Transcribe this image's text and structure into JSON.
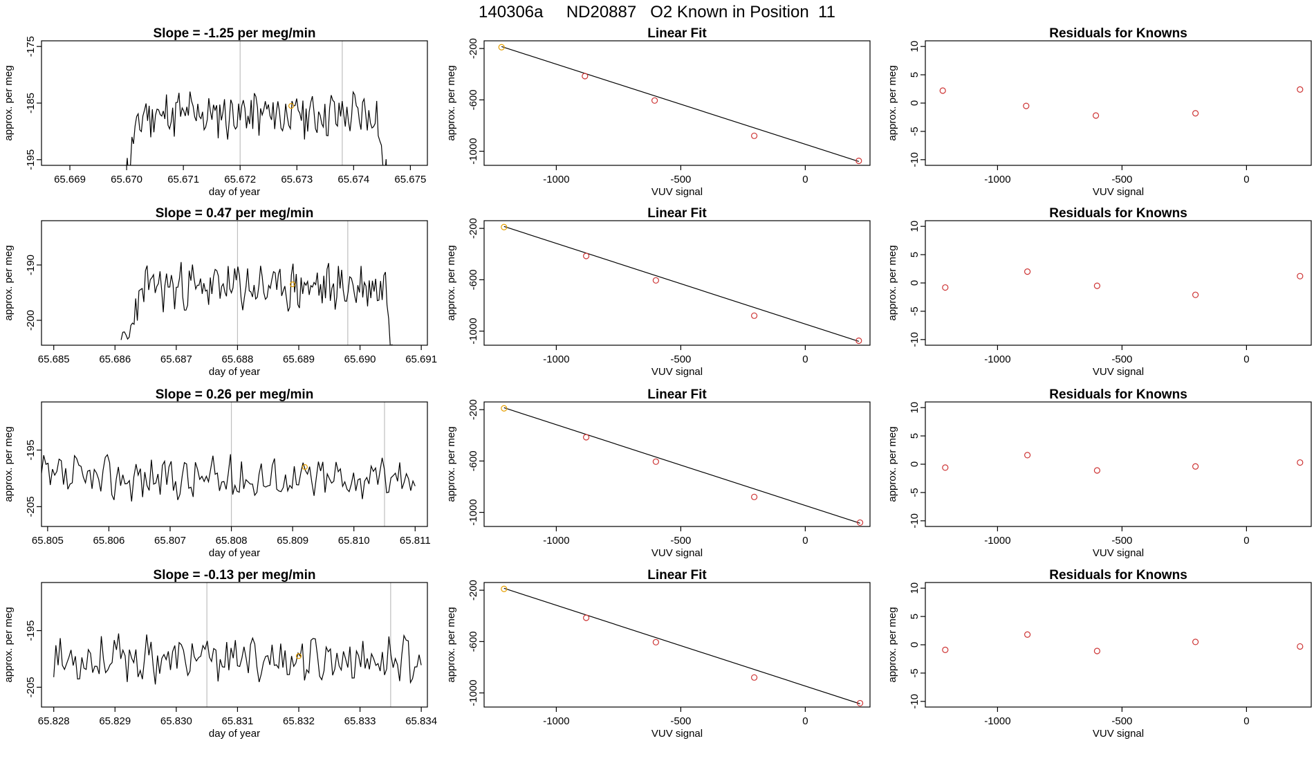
{
  "figure": {
    "title": "140306a     ND20887   O2 Known in Position  11"
  },
  "colors": {
    "line": "#000000",
    "fit_point": "#cd3333",
    "highlight_point": "#e69f00",
    "vline": "#bebebe",
    "axis": "#000000"
  },
  "chart_data": [
    {
      "type": "line",
      "row": 1,
      "col": 1,
      "title": "Slope =  -1.25  per meg/min",
      "xlabel": "day of year",
      "ylabel": "approx. per meg",
      "xlim": [
        65.6685,
        65.6753
      ],
      "ylim": [
        -196,
        -174
      ],
      "xticks": [
        65.669,
        65.67,
        65.671,
        65.672,
        65.673,
        65.674,
        65.675
      ],
      "xtick_labels": [
        "65.669",
        "65.670",
        "65.671",
        "65.672",
        "65.673",
        "65.674",
        "65.675"
      ],
      "yticks": [
        -175,
        -185,
        -195
      ],
      "ytick_labels": [
        "-175",
        "-185",
        "-195"
      ],
      "vlines": [
        65.672,
        65.6738
      ],
      "x_range": [
        65.6699,
        65.6746
      ],
      "baseline": -187,
      "amp": 3.5,
      "ramp_drop": 9,
      "seed": 11,
      "highlight": {
        "x": 65.6729,
        "y": -185.5
      }
    },
    {
      "type": "scatter_fit",
      "row": 1,
      "col": 2,
      "title": "Linear Fit",
      "xlabel": "VUV signal",
      "ylabel": "approx. per meg",
      "xlim": [
        -1290,
        260
      ],
      "ylim": [
        -1110,
        -140
      ],
      "xticks": [
        -1000,
        -500,
        0
      ],
      "xtick_labels": [
        "-1000",
        "-500",
        "0"
      ],
      "yticks": [
        -200,
        -600,
        -1000
      ],
      "ytick_labels": [
        "-200",
        "-600",
        "-1000"
      ],
      "x": [
        -1220,
        -885,
        -605,
        -205,
        215
      ],
      "y": [
        -190,
        -415,
        -605,
        -880,
        -1075
      ],
      "fit_line": [
        [
          -1220,
          -185
        ],
        [
          215,
          -1080
        ]
      ]
    },
    {
      "type": "scatter",
      "row": 1,
      "col": 3,
      "title": "Residuals for Knowns",
      "xlabel": "VUV signal",
      "ylabel": "approx. per meg",
      "xlim": [
        -1290,
        260
      ],
      "ylim": [
        -11,
        11
      ],
      "xticks": [
        -1000,
        -500,
        0
      ],
      "xtick_labels": [
        "-1000",
        "-500",
        "0"
      ],
      "yticks": [
        10,
        5,
        0,
        -5,
        -10
      ],
      "ytick_labels": [
        "10",
        "5",
        "0",
        "-5",
        "-10"
      ],
      "x": [
        -1220,
        -885,
        -605,
        -205,
        215
      ],
      "y": [
        2.2,
        -0.5,
        -2.2,
        -1.8,
        2.4
      ]
    },
    {
      "type": "line",
      "row": 2,
      "col": 1,
      "title": "Slope =  0.47  per meg/min",
      "xlabel": "day of year",
      "ylabel": "approx. per meg",
      "xlim": [
        65.6848,
        65.6911
      ],
      "ylim": [
        -204.5,
        -182
      ],
      "xticks": [
        65.685,
        65.686,
        65.687,
        65.688,
        65.689,
        65.69,
        65.691
      ],
      "xtick_labels": [
        "65.685",
        "65.686",
        "65.687",
        "65.688",
        "65.689",
        "65.690",
        "65.691"
      ],
      "yticks": [
        -190,
        -200
      ],
      "ytick_labels": [
        "-190",
        "-200"
      ],
      "vlines": [
        65.688,
        65.6898
      ],
      "x_range": [
        65.6861,
        65.6906
      ],
      "baseline": -194,
      "amp": 3.5,
      "ramp_drop": 9,
      "seed": 23,
      "highlight": {
        "x": 65.6889,
        "y": -193.5
      }
    },
    {
      "type": "scatter_fit",
      "row": 2,
      "col": 2,
      "title": "Linear Fit",
      "xlabel": "VUV signal",
      "ylabel": "approx. per meg",
      "xlim": [
        -1290,
        260
      ],
      "ylim": [
        -1110,
        -140
      ],
      "xticks": [
        -1000,
        -500,
        0
      ],
      "xtick_labels": [
        "-1000",
        "-500",
        "0"
      ],
      "yticks": [
        -200,
        -600,
        -1000
      ],
      "ytick_labels": [
        "-200",
        "-600",
        "-1000"
      ],
      "x": [
        -1210,
        -880,
        -600,
        -205,
        215
      ],
      "y": [
        -190,
        -415,
        -605,
        -880,
        -1075
      ],
      "fit_line": [
        [
          -1210,
          -185
        ],
        [
          215,
          -1080
        ]
      ]
    },
    {
      "type": "scatter",
      "row": 2,
      "col": 3,
      "title": "Residuals for Knowns",
      "xlabel": "VUV signal",
      "ylabel": "approx. per meg",
      "xlim": [
        -1290,
        260
      ],
      "ylim": [
        -11,
        11
      ],
      "xticks": [
        -1000,
        -500,
        0
      ],
      "xtick_labels": [
        "-1000",
        "-500",
        "0"
      ],
      "yticks": [
        10,
        5,
        0,
        -5,
        -10
      ],
      "ytick_labels": [
        "10",
        "5",
        "0",
        "-5",
        "-10"
      ],
      "x": [
        -1210,
        -880,
        -600,
        -205,
        215
      ],
      "y": [
        -0.8,
        2.0,
        -0.5,
        -2.1,
        1.2
      ]
    },
    {
      "type": "line",
      "row": 3,
      "col": 1,
      "title": "Slope =  0.26  per meg/min",
      "xlabel": "day of year",
      "ylabel": "approx. per meg",
      "xlim": [
        65.8049,
        65.8112
      ],
      "ylim": [
        -208.5,
        -186.5
      ],
      "xticks": [
        65.805,
        65.806,
        65.807,
        65.808,
        65.809,
        65.81,
        65.811
      ],
      "xtick_labels": [
        "65.805",
        "65.806",
        "65.807",
        "65.808",
        "65.809",
        "65.810",
        "65.811"
      ],
      "yticks": [
        -195,
        -205
      ],
      "ytick_labels": [
        "-195",
        "-205"
      ],
      "vlines": [
        65.808,
        65.8105
      ],
      "x_range": [
        65.8049,
        65.811
      ],
      "baseline": -200,
      "amp": 3.2,
      "ramp_drop": 0,
      "seed": 37,
      "highlight": {
        "x": 65.8092,
        "y": -198.0
      }
    },
    {
      "type": "scatter_fit",
      "row": 3,
      "col": 2,
      "title": "Linear Fit",
      "xlabel": "VUV signal",
      "ylabel": "approx. per meg",
      "xlim": [
        -1290,
        260
      ],
      "ylim": [
        -1110,
        -140
      ],
      "xticks": [
        -1000,
        -500,
        0
      ],
      "xtick_labels": [
        "-1000",
        "-500",
        "0"
      ],
      "yticks": [
        -200,
        -600,
        -1000
      ],
      "ytick_labels": [
        "-200",
        "-600",
        "-1000"
      ],
      "x": [
        -1210,
        -880,
        -600,
        -205,
        220
      ],
      "y": [
        -190,
        -415,
        -605,
        -880,
        -1080
      ],
      "fit_line": [
        [
          -1210,
          -185
        ],
        [
          220,
          -1085
        ]
      ]
    },
    {
      "type": "scatter",
      "row": 3,
      "col": 3,
      "title": "Residuals for Knowns",
      "xlabel": "VUV signal",
      "ylabel": "approx. per meg",
      "xlim": [
        -1290,
        260
      ],
      "ylim": [
        -11,
        11
      ],
      "xticks": [
        -1000,
        -500,
        0
      ],
      "xtick_labels": [
        "-1000",
        "-500",
        "0"
      ],
      "yticks": [
        10,
        5,
        0,
        -5,
        -10
      ],
      "ytick_labels": [
        "10",
        "5",
        "0",
        "-5",
        "-10"
      ],
      "x": [
        -1210,
        -880,
        -600,
        -205,
        215
      ],
      "y": [
        -0.6,
        1.6,
        -1.1,
        -0.4,
        0.3
      ]
    },
    {
      "type": "line",
      "row": 4,
      "col": 1,
      "title": "Slope =  -0.13  per meg/min",
      "xlabel": "day of year",
      "ylabel": "approx. per meg",
      "xlim": [
        65.8278,
        65.8341
      ],
      "ylim": [
        -208.5,
        -186.5
      ],
      "xticks": [
        65.828,
        65.829,
        65.83,
        65.831,
        65.832,
        65.833,
        65.834
      ],
      "xtick_labels": [
        "65.828",
        "65.829",
        "65.830",
        "65.831",
        "65.832",
        "65.833",
        "65.834"
      ],
      "yticks": [
        -195,
        -205
      ],
      "ytick_labels": [
        "-195",
        "-205"
      ],
      "vlines": [
        65.8305,
        65.8335
      ],
      "x_range": [
        65.828,
        65.834
      ],
      "baseline": -200,
      "amp": 3.3,
      "ramp_drop": 0,
      "seed": 53,
      "highlight": {
        "x": 65.832,
        "y": -199.5
      }
    },
    {
      "type": "scatter_fit",
      "row": 4,
      "col": 2,
      "title": "Linear Fit",
      "xlabel": "VUV signal",
      "ylabel": "approx. per meg",
      "xlim": [
        -1290,
        260
      ],
      "ylim": [
        -1110,
        -140
      ],
      "xticks": [
        -1000,
        -500,
        0
      ],
      "xtick_labels": [
        "-1000",
        "-500",
        "0"
      ],
      "yticks": [
        -200,
        -600,
        -1000
      ],
      "ytick_labels": [
        "-200",
        "-600",
        "-1000"
      ],
      "x": [
        -1210,
        -880,
        -600,
        -205,
        220
      ],
      "y": [
        -190,
        -415,
        -605,
        -880,
        -1080
      ],
      "fit_line": [
        [
          -1210,
          -185
        ],
        [
          220,
          -1085
        ]
      ]
    },
    {
      "type": "scatter",
      "row": 4,
      "col": 3,
      "title": "Residuals for Knowns",
      "xlabel": "VUV signal",
      "ylabel": "approx. per meg",
      "xlim": [
        -1290,
        260
      ],
      "ylim": [
        -11,
        11
      ],
      "xticks": [
        -1000,
        -500,
        0
      ],
      "xtick_labels": [
        "-1000",
        "-500",
        "0"
      ],
      "yticks": [
        10,
        5,
        0,
        -5,
        -10
      ],
      "ytick_labels": [
        "10",
        "5",
        "0",
        "-5",
        "-10"
      ],
      "x": [
        -1210,
        -880,
        -600,
        -205,
        215
      ],
      "y": [
        -0.9,
        1.8,
        -1.1,
        0.5,
        -0.3
      ]
    }
  ]
}
